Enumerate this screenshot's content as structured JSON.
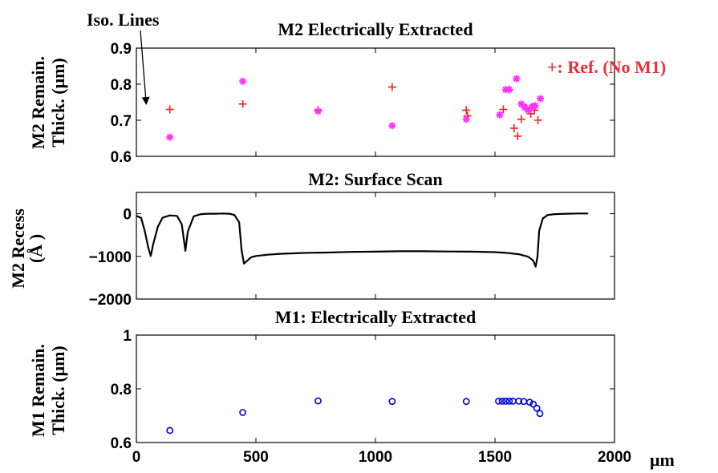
{
  "annotations": {
    "iso_lines": "Iso. Lines",
    "reference": "+: Ref. (No M1)",
    "x_unit": "μm"
  },
  "colors": {
    "reference": "#ff1a1a",
    "extracted_m2": "#ff33ff",
    "profile": "#000000",
    "extracted_m1": "#0000dd",
    "ref_label": "#e8303a"
  },
  "chart_data": [
    {
      "type": "scatter",
      "title": "M2 Electrically Extracted",
      "ylabel": [
        "M2 Remain.",
        "Thick. (μm)"
      ],
      "xlim": [
        0,
        2000
      ],
      "ylim": [
        0.6,
        0.9
      ],
      "yticks": [
        0.6,
        0.7,
        0.8,
        0.9
      ],
      "ytick_labels": [
        "0.6",
        "0.7",
        "0.8",
        "0.9"
      ],
      "grid": false,
      "series": [
        {
          "name": "+: Ref. (No M1)",
          "marker": "plus",
          "points": [
            [
              140,
              0.73
            ],
            [
              445,
              0.745
            ],
            [
              760,
              0.728
            ],
            [
              1070,
              0.792
            ],
            [
              1380,
              0.728
            ],
            [
              1385,
              0.712
            ],
            [
              1535,
              0.73
            ],
            [
              1560,
              0.785
            ],
            [
              1580,
              0.678
            ],
            [
              1595,
              0.656
            ],
            [
              1610,
              0.703
            ],
            [
              1630,
              0.735
            ],
            [
              1650,
              0.718
            ],
            [
              1665,
              0.728
            ],
            [
              1680,
              0.7
            ]
          ]
        },
        {
          "marker": "asterisk",
          "points": [
            [
              140,
              0.653
            ],
            [
              445,
              0.808
            ],
            [
              760,
              0.725
            ],
            [
              1070,
              0.685
            ],
            [
              1380,
              0.703
            ],
            [
              1520,
              0.715
            ],
            [
              1545,
              0.785
            ],
            [
              1560,
              0.785
            ],
            [
              1590,
              0.815
            ],
            [
              1610,
              0.745
            ],
            [
              1625,
              0.735
            ],
            [
              1640,
              0.728
            ],
            [
              1655,
              0.738
            ],
            [
              1668,
              0.74
            ],
            [
              1690,
              0.76
            ]
          ]
        }
      ]
    },
    {
      "type": "line",
      "title": "M2: Surface Scan",
      "ylabel": [
        "M2 Recess",
        "(Å )"
      ],
      "xlim": [
        0,
        2000
      ],
      "ylim": [
        -2000,
        500
      ],
      "yticks": [
        -2000,
        -1000,
        0
      ],
      "ytick_labels": [
        "−2000",
        "−1000",
        "0"
      ],
      "grid": false,
      "series": [
        {
          "points": [
            [
              0,
              -50
            ],
            [
              20,
              -100
            ],
            [
              35,
              -400
            ],
            [
              50,
              -800
            ],
            [
              60,
              -990
            ],
            [
              70,
              -720
            ],
            [
              90,
              -300
            ],
            [
              110,
              -90
            ],
            [
              140,
              -40
            ],
            [
              170,
              -50
            ],
            [
              190,
              -250
            ],
            [
              205,
              -870
            ],
            [
              215,
              -420
            ],
            [
              240,
              -60
            ],
            [
              270,
              -10
            ],
            [
              300,
              0
            ],
            [
              330,
              0
            ],
            [
              360,
              5
            ],
            [
              390,
              0
            ],
            [
              410,
              -30
            ],
            [
              430,
              -200
            ],
            [
              440,
              -850
            ],
            [
              450,
              -1170
            ],
            [
              460,
              -1120
            ],
            [
              480,
              -1020
            ],
            [
              500,
              -990
            ],
            [
              550,
              -960
            ],
            [
              600,
              -940
            ],
            [
              700,
              -920
            ],
            [
              800,
              -910
            ],
            [
              900,
              -895
            ],
            [
              1000,
              -890
            ],
            [
              1100,
              -880
            ],
            [
              1200,
              -880
            ],
            [
              1300,
              -885
            ],
            [
              1400,
              -890
            ],
            [
              1500,
              -900
            ],
            [
              1550,
              -920
            ],
            [
              1600,
              -950
            ],
            [
              1640,
              -1010
            ],
            [
              1660,
              -1100
            ],
            [
              1670,
              -1240
            ],
            [
              1678,
              -1000
            ],
            [
              1685,
              -400
            ],
            [
              1700,
              -110
            ],
            [
              1720,
              -30
            ],
            [
              1750,
              -10
            ],
            [
              1800,
              0
            ],
            [
              1850,
              5
            ],
            [
              1890,
              5
            ]
          ]
        }
      ]
    },
    {
      "type": "scatter",
      "title": "M1: Electrically Extracted",
      "ylabel": [
        "M1 Remain.",
        "Thick. (μm)"
      ],
      "xlim": [
        0,
        2000
      ],
      "ylim": [
        0.6,
        1
      ],
      "yticks": [
        0.6,
        0.8,
        1
      ],
      "ytick_labels": [
        "0.6",
        "0.8",
        "1"
      ],
      "xticks": [
        0,
        500,
        1000,
        1500,
        2000
      ],
      "xtick_labels": [
        "0",
        "500",
        "1000",
        "1500",
        "2000"
      ],
      "grid": false,
      "series": [
        {
          "marker": "circle",
          "points": [
            [
              140,
              0.645
            ],
            [
              445,
              0.712
            ],
            [
              760,
              0.755
            ],
            [
              1070,
              0.753
            ],
            [
              1380,
              0.753
            ],
            [
              1515,
              0.754
            ],
            [
              1530,
              0.754
            ],
            [
              1545,
              0.754
            ],
            [
              1560,
              0.754
            ],
            [
              1575,
              0.754
            ],
            [
              1600,
              0.754
            ],
            [
              1620,
              0.753
            ],
            [
              1645,
              0.75
            ],
            [
              1660,
              0.743
            ],
            [
              1675,
              0.728
            ],
            [
              1688,
              0.708
            ]
          ]
        }
      ]
    }
  ]
}
